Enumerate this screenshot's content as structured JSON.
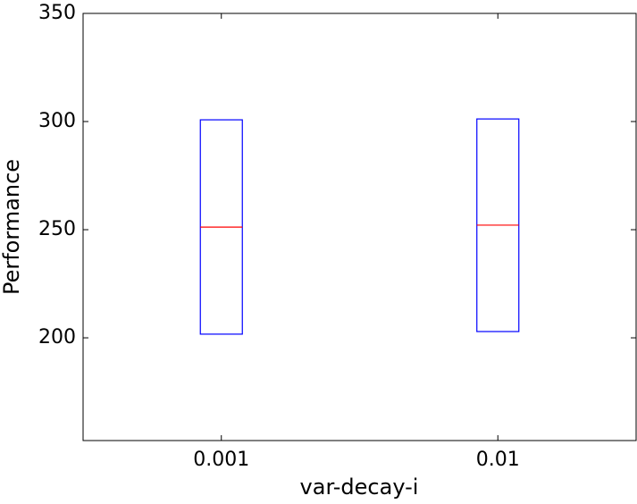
{
  "chart_data": {
    "type": "box",
    "x_label": "var-decay-i",
    "y_label": "Performance",
    "categories": [
      "0.001",
      "0.01"
    ],
    "boxes": [
      {
        "q1": 201.7,
        "median": 251.2,
        "q3": 300.8
      },
      {
        "q1": 202.9,
        "median": 252.1,
        "q3": 301.2
      }
    ],
    "box_color": "#0000ff",
    "median_color": "#ff0000",
    "ylim": [
      152.5,
      350
    ],
    "yticks": [
      200,
      250,
      300,
      350
    ]
  }
}
